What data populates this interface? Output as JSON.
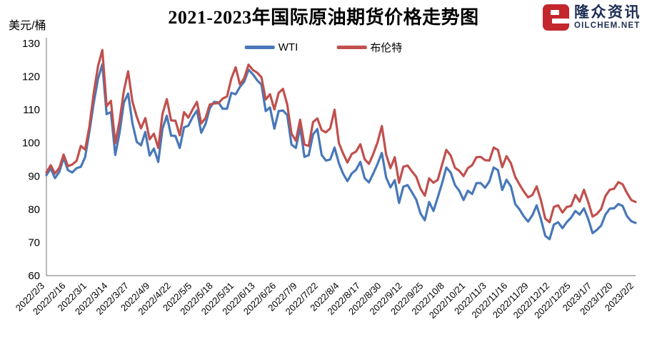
{
  "header": {
    "title": "2021-2023年国际原油期货价格走势图",
    "y_unit": "美元/桶",
    "logo": {
      "name": "隆众资讯",
      "site": "OILCHEM.NET",
      "icon_color": "#c4262d",
      "text_color": "#1f2e54"
    }
  },
  "chart_data": {
    "type": "line",
    "title": "2021-2023年国际原油期货价格走势图",
    "xlabel": "",
    "ylabel": "美元/桶",
    "ylim": [
      60,
      130
    ],
    "yticks": [
      60,
      70,
      80,
      90,
      100,
      110,
      120,
      130
    ],
    "grid": false,
    "legend_position": "top",
    "axis_color": "#8a8a8a",
    "categories": [
      "2022/2/3",
      "2022/2/16",
      "2022/3/1",
      "2022/3/14",
      "2022/3/27",
      "2022/4/9",
      "2022/4/22",
      "2022/5/5",
      "2022/5/18",
      "2022/5/31",
      "2022/6/13",
      "2022/6/26",
      "2022/7/9",
      "2022/7/22",
      "2022/8/4",
      "2022/8/17",
      "2022/8/30",
      "2022/9/12",
      "2022/9/25",
      "2022/10/8",
      "2022/10/21",
      "2022/11/3",
      "2022/11/16",
      "2022/11/29",
      "2022/12/12",
      "2022/12/25",
      "2023/1/7",
      "2023/1/20",
      "2023/2/2"
    ],
    "series": [
      {
        "name": "WTI",
        "color": "#4878B8",
        "values": [
          90.3,
          92.3,
          89.4,
          91.3,
          95.5,
          91.8,
          91.1,
          92.4,
          92.8,
          95.7,
          103.4,
          112.0,
          119.4,
          123.7,
          108.7,
          109.3,
          96.4,
          103.0,
          112.1,
          114.9,
          106.0,
          100.3,
          99.3,
          103.3,
          96.2,
          98.3,
          94.3,
          104.3,
          108.2,
          102.2,
          102.1,
          98.5,
          104.7,
          105.2,
          107.8,
          109.8,
          103.1,
          105.7,
          110.5,
          112.4,
          112.2,
          110.3,
          110.3,
          115.1,
          114.7,
          116.9,
          118.5,
          122.1,
          120.7,
          118.9,
          117.6,
          109.6,
          110.7,
          104.3,
          109.6,
          109.8,
          108.4,
          99.5,
          98.5,
          104.8,
          95.8,
          96.3,
          102.6,
          104.2,
          96.4,
          94.7,
          95.0,
          98.6,
          93.9,
          90.7,
          88.5,
          90.8,
          91.9,
          94.3,
          89.4,
          88.1,
          90.8,
          93.7,
          97.0,
          89.6,
          86.6,
          88.8,
          81.9,
          86.8,
          87.3,
          85.1,
          82.9,
          78.7,
          76.7,
          82.2,
          79.5,
          83.6,
          87.8,
          92.6,
          91.1,
          87.3,
          85.6,
          82.8,
          85.6,
          84.6,
          87.9,
          87.9,
          86.5,
          88.4,
          92.6,
          91.8,
          85.8,
          88.9,
          86.9,
          81.6,
          80.0,
          77.9,
          76.3,
          78.2,
          81.2,
          77.0,
          72.0,
          71.0,
          75.4,
          76.1,
          74.3,
          76.1,
          77.5,
          79.5,
          78.4,
          80.3,
          77.0,
          72.8,
          73.8,
          75.1,
          78.4,
          80.2,
          80.3,
          81.6,
          81.0,
          77.9,
          76.4,
          75.9
        ]
      },
      {
        "name": "布伦特",
        "color": "#C0504D",
        "values": [
          91.1,
          93.3,
          90.8,
          92.5,
          96.5,
          93.0,
          93.5,
          94.6,
          99.1,
          98.0,
          105.0,
          115.0,
          123.2,
          128.0,
          111.1,
          112.7,
          99.9,
          106.6,
          115.6,
          121.6,
          112.5,
          107.9,
          104.4,
          107.5,
          101.1,
          102.8,
          98.5,
          108.8,
          113.2,
          106.8,
          106.7,
          102.3,
          109.3,
          107.6,
          110.1,
          112.4,
          105.9,
          107.5,
          111.6,
          111.9,
          112.0,
          113.4,
          114.0,
          119.4,
          122.8,
          117.6,
          119.5,
          123.6,
          122.0,
          121.2,
          119.8,
          113.1,
          114.7,
          110.1,
          115.1,
          116.3,
          111.6,
          102.8,
          100.7,
          107.0,
          99.5,
          99.1,
          106.3,
          107.4,
          103.9,
          103.2,
          104.4,
          110.0,
          100.0,
          96.8,
          94.1,
          96.7,
          97.4,
          99.6,
          95.1,
          93.7,
          96.7,
          100.2,
          105.1,
          96.5,
          92.4,
          95.7,
          88.0,
          92.8,
          93.2,
          91.4,
          89.8,
          86.2,
          84.1,
          89.3,
          88.0,
          88.9,
          93.4,
          97.9,
          96.2,
          92.5,
          91.6,
          90.0,
          92.4,
          93.3,
          95.7,
          95.8,
          94.8,
          94.7,
          98.6,
          97.9,
          92.7,
          96.0,
          93.9,
          89.8,
          87.5,
          85.4,
          83.6,
          84.3,
          86.9,
          82.7,
          77.2,
          76.1,
          80.7,
          81.2,
          79.0,
          80.7,
          81.0,
          84.3,
          82.3,
          85.9,
          82.1,
          77.8,
          78.6,
          80.1,
          84.0,
          85.9,
          86.2,
          88.2,
          87.5,
          84.9,
          82.8,
          82.2
        ]
      }
    ]
  }
}
